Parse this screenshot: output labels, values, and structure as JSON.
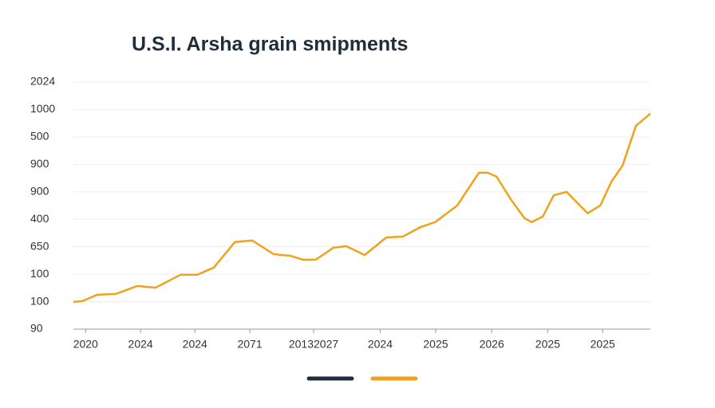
{
  "chart_data": {
    "type": "line",
    "title": "U.S.I. Arsha grain smipments",
    "xlim": [
      0,
      10.4
    ],
    "xticks": [
      {
        "value": 0.22,
        "label": "2020"
      },
      {
        "value": 1.21,
        "label": "2024"
      },
      {
        "value": 2.19,
        "label": "2024"
      },
      {
        "value": 3.18,
        "label": "2071"
      },
      {
        "value": 4.33,
        "label": "20132027"
      },
      {
        "value": 5.53,
        "label": "2024"
      },
      {
        "value": 6.53,
        "label": "2025"
      },
      {
        "value": 7.54,
        "label": "2026"
      },
      {
        "value": 8.55,
        "label": "2025"
      },
      {
        "value": 9.54,
        "label": "2025"
      }
    ],
    "ylim": [
      0,
      9
    ],
    "yticks": [
      {
        "value": 0,
        "label": "90"
      },
      {
        "value": 1,
        "label": "100"
      },
      {
        "value": 2,
        "label": "100"
      },
      {
        "value": 3,
        "label": "650"
      },
      {
        "value": 4,
        "label": "400"
      },
      {
        "value": 5,
        "label": "900"
      },
      {
        "value": 6,
        "label": "900"
      },
      {
        "value": 7,
        "label": "500"
      },
      {
        "value": 8,
        "label": "1000"
      },
      {
        "value": 9,
        "label": "2024"
      }
    ],
    "grid": true,
    "series": [
      {
        "color": "#f0a21a",
        "x": [
          0,
          0.16,
          0.43,
          0.76,
          1.15,
          1.48,
          1.93,
          2.23,
          2.53,
          2.91,
          3.22,
          3.61,
          3.91,
          4.14,
          4.37,
          4.69,
          4.92,
          5.25,
          5.64,
          5.94,
          6.26,
          6.52,
          6.92,
          7.31,
          7.47,
          7.63,
          7.88,
          8.13,
          8.26,
          8.46,
          8.66,
          8.89,
          9.27,
          9.5,
          9.7,
          9.9,
          10.14,
          10.4
        ],
        "values": [
          0.99,
          1.02,
          1.25,
          1.28,
          1.57,
          1.51,
          1.98,
          1.98,
          2.24,
          3.17,
          3.23,
          2.73,
          2.67,
          2.53,
          2.53,
          2.97,
          3.02,
          2.7,
          3.34,
          3.37,
          3.72,
          3.9,
          4.51,
          5.7,
          5.7,
          5.55,
          4.74,
          4.04,
          3.9,
          4.1,
          4.88,
          5.0,
          4.22,
          4.51,
          5.38,
          5.96,
          7.41,
          7.85
        ]
      }
    ]
  }
}
